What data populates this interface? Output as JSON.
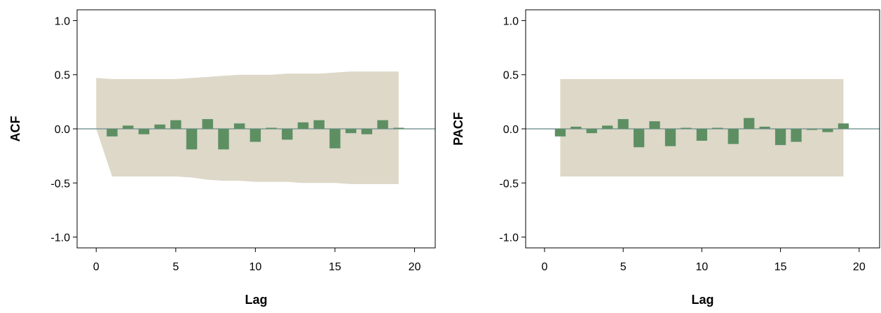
{
  "colors": {
    "band": "#ddd8c8",
    "bar": "#5d8f63",
    "zero_line": "#7f9a99",
    "frame": "#000000"
  },
  "chart_data": [
    {
      "type": "bar",
      "ylabel": "ACF",
      "xlabel": "Lag",
      "xlim": [
        -1.2,
        21.3
      ],
      "ylim": [
        -1.1,
        1.1
      ],
      "xticks": [
        0,
        5,
        10,
        15,
        20
      ],
      "xtick_labels": [
        "0",
        "5",
        "10",
        "15",
        "20"
      ],
      "yticks": [
        1.0,
        0.5,
        0.0,
        -0.5,
        -1.0
      ],
      "ytick_labels": [
        "1.0",
        "0.5",
        "0.0",
        "-0.5",
        "-1.0"
      ],
      "zero_line": true,
      "lags": [
        1,
        2,
        3,
        4,
        5,
        6,
        7,
        8,
        9,
        10,
        11,
        12,
        13,
        14,
        15,
        16,
        17,
        18,
        19
      ],
      "values": [
        -0.07,
        0.03,
        -0.05,
        0.04,
        0.08,
        -0.19,
        0.09,
        -0.19,
        0.05,
        -0.12,
        0.01,
        -0.1,
        0.06,
        0.08,
        -0.18,
        -0.04,
        -0.05,
        0.08,
        0.01
      ],
      "confidence_band": {
        "lags": [
          0,
          1,
          2,
          3,
          4,
          5,
          6,
          7,
          8,
          9,
          10,
          11,
          12,
          13,
          14,
          15,
          16,
          17,
          18,
          19
        ],
        "upper": [
          0.47,
          0.46,
          0.46,
          0.46,
          0.46,
          0.46,
          0.47,
          0.48,
          0.49,
          0.5,
          0.5,
          0.5,
          0.51,
          0.51,
          0.51,
          0.52,
          0.53,
          0.53,
          0.53,
          0.53
        ],
        "lower": [
          0.0,
          -0.44,
          -0.44,
          -0.44,
          -0.44,
          -0.44,
          -0.45,
          -0.47,
          -0.48,
          -0.48,
          -0.49,
          -0.49,
          -0.49,
          -0.5,
          -0.5,
          -0.5,
          -0.51,
          -0.51,
          -0.51,
          -0.51
        ]
      }
    },
    {
      "type": "bar",
      "ylabel": "PACF",
      "xlabel": "Lag",
      "xlim": [
        -1.2,
        21.3
      ],
      "ylim": [
        -1.1,
        1.1
      ],
      "xticks": [
        0,
        5,
        10,
        15,
        20
      ],
      "xtick_labels": [
        "0",
        "5",
        "10",
        "15",
        "20"
      ],
      "yticks": [
        1.0,
        0.5,
        0.0,
        -0.5,
        -1.0
      ],
      "ytick_labels": [
        "1.0",
        "0.5",
        "0.0",
        "-0.5",
        "-1.0"
      ],
      "zero_line": true,
      "lags": [
        1,
        2,
        3,
        4,
        5,
        6,
        7,
        8,
        9,
        10,
        11,
        12,
        13,
        14,
        15,
        16,
        17,
        18,
        19
      ],
      "values": [
        -0.07,
        0.02,
        -0.04,
        0.03,
        0.09,
        -0.17,
        0.07,
        -0.16,
        0.0,
        -0.11,
        0.0,
        -0.14,
        0.1,
        0.02,
        -0.15,
        -0.12,
        -0.01,
        -0.03,
        0.05
      ],
      "confidence_band": {
        "lags": [
          1,
          19
        ],
        "upper": [
          0.46,
          0.46
        ],
        "lower": [
          -0.44,
          -0.44
        ]
      }
    }
  ]
}
